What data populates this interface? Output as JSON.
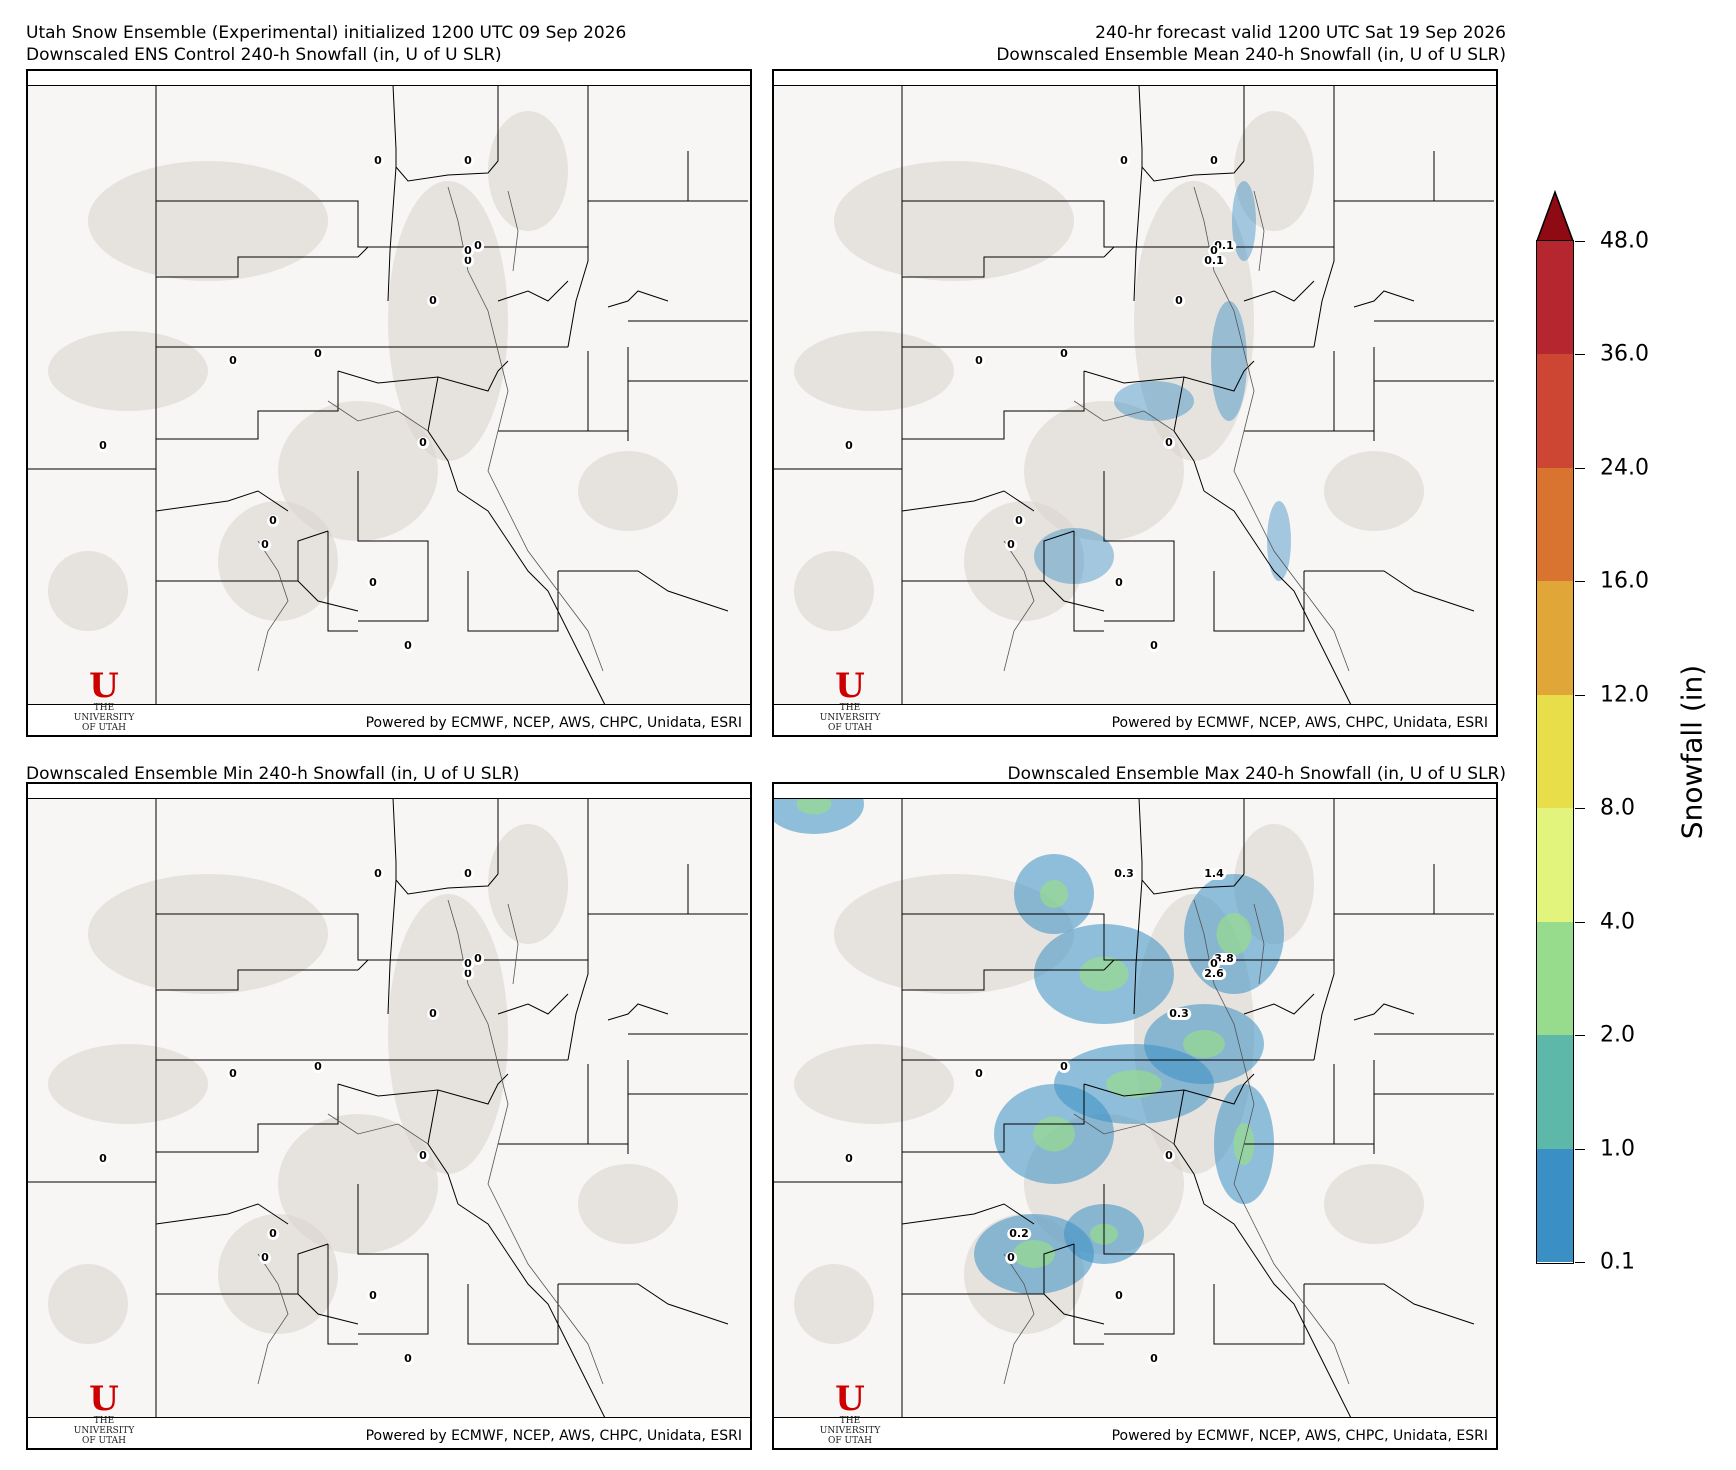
{
  "header": {
    "top_left_line1": "Utah Snow Ensemble (Experimental) initialized 1200 UTC 09 Sep 2026",
    "top_left_line2": "Downscaled ENS Control 240-h Snowfall (in, U of U SLR)",
    "top_right_line1": "240-hr forecast valid 1200 UTC Sat 19 Sep 2026",
    "top_right_line2": "Downscaled Ensemble Mean 240-h Snowfall (in, U of U SLR)",
    "bottom_left_title": "Downscaled Ensemble Min 240-h Snowfall (in, U of U SLR)",
    "bottom_right_title": "Downscaled Ensemble Max 240-h Snowfall (in, U of U SLR)"
  },
  "credit": "Powered by ECMWF, NCEP, AWS, CHPC, Unidata, ESRI",
  "logo": {
    "letter": "U",
    "line1": "THE",
    "line2": "UNIVERSITY",
    "line3": "OF UTAH"
  },
  "panels": [
    {
      "id": "control",
      "labels": [
        "0",
        "0",
        "0",
        "0",
        "0",
        "0",
        "0",
        "0",
        "0",
        "0",
        "0",
        "0",
        "0",
        "0"
      ]
    },
    {
      "id": "mean",
      "labels": [
        "0",
        "0",
        "0.1",
        "0.1",
        "0",
        "0",
        "0",
        "0",
        "0",
        "0",
        "0",
        "0",
        "0",
        "0"
      ]
    },
    {
      "id": "min",
      "labels": [
        "0",
        "0",
        "0",
        "0",
        "0",
        "0",
        "0",
        "0",
        "0",
        "0",
        "0",
        "0",
        "0",
        "0"
      ]
    },
    {
      "id": "max",
      "labels": [
        "0.3",
        "1.4",
        "3.8",
        "2.6",
        "0.3",
        "0",
        "0",
        "0",
        "0",
        "0.2",
        "0",
        "0",
        "0",
        "0"
      ]
    }
  ],
  "colorbar": {
    "title": "Snowfall (in)",
    "ticks": [
      "48.0",
      "36.0",
      "24.0",
      "16.0",
      "12.0",
      "8.0",
      "4.0",
      "2.0",
      "1.0",
      "0.1"
    ],
    "colors": [
      "#b5262e",
      "#cc4633",
      "#d8742f",
      "#e0a637",
      "#e8de4a",
      "#e2f47c",
      "#97dc8d",
      "#5db8aa",
      "#3a8fc4"
    ],
    "extend_color": "#8e0b14"
  }
}
